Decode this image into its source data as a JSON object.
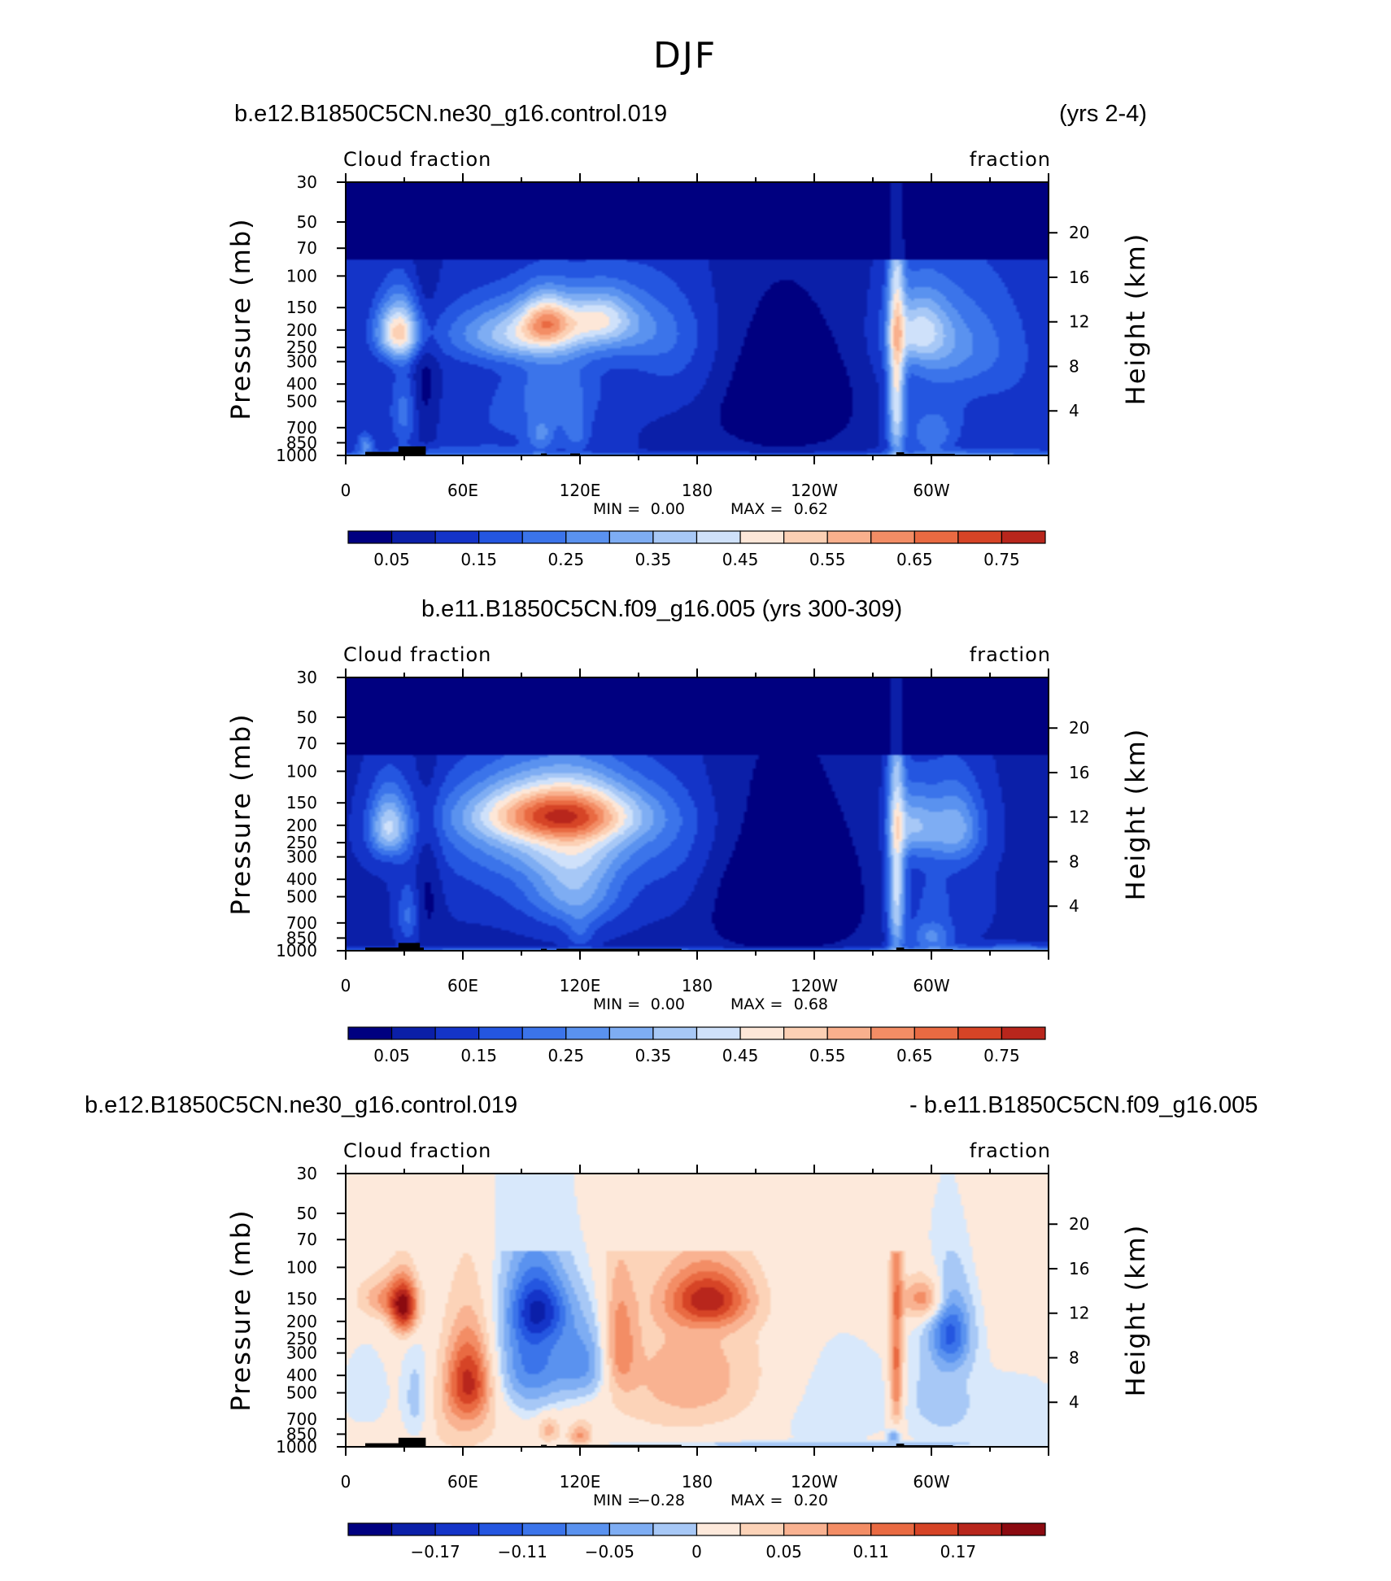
{
  "figure": {
    "season": "DJF"
  },
  "palettes": {
    "sequential": [
      "#000080",
      "#0b1fa8",
      "#1434c8",
      "#2456e0",
      "#3b74ea",
      "#5a92ef",
      "#7eadf3",
      "#a7c8f6",
      "#cfe1fa",
      "#fde7d8",
      "#fcd0b4",
      "#f9b08d",
      "#f38d65",
      "#e96a42",
      "#d64426",
      "#b8261c",
      "#8b0a10"
    ],
    "diverging": [
      "#000080",
      "#0b1fa8",
      "#1434c8",
      "#2456e0",
      "#3b74ea",
      "#5a92ef",
      "#7eadf3",
      "#a7c8f6",
      "#d8e8fb",
      "#fde9db",
      "#fcd3b8",
      "#f9b291",
      "#f38d65",
      "#e96a42",
      "#d64426",
      "#b8261c",
      "#8b0a10"
    ]
  },
  "chart_data": [
    {
      "type": "heatmap",
      "title_left": "b.e12.B1850C5CN.ne30_g16.control.019",
      "title_right": "(yrs 2-4)",
      "label_left": "Cloud fraction",
      "label_right": "fraction",
      "ylabel": "Pressure (mb)",
      "ylabel_right": "Height (km)",
      "x_ticks": [
        "0",
        "60E",
        "120E",
        "180",
        "120W",
        "60W"
      ],
      "x_tick_lons": [
        0,
        60,
        120,
        180,
        240,
        300
      ],
      "xlim": [
        0,
        360
      ],
      "y_ticks": [
        "30",
        "50",
        "70",
        "100",
        "150",
        "200",
        "250",
        "300",
        "400",
        "500",
        "700",
        "850",
        "1000"
      ],
      "y_tick_vals": [
        30,
        50,
        70,
        100,
        150,
        200,
        250,
        300,
        400,
        500,
        700,
        850,
        1000
      ],
      "ylim": [
        30,
        1000
      ],
      "y_scale": "log",
      "height_ticks": [
        "20",
        "16",
        "12",
        "8",
        "4"
      ],
      "height_tick_km": [
        20,
        16,
        12,
        8,
        4
      ],
      "min_label": "MIN =",
      "min_value": "0.00",
      "max_label": "MAX =",
      "max_value": "0.62",
      "colorbar_labels": [
        "0.05",
        "0.15",
        "0.25",
        "0.35",
        "0.45",
        "0.55",
        "0.65",
        "0.75"
      ],
      "palette": "sequential",
      "field": [
        {
          "lon": 27,
          "p": 205,
          "sx": 8,
          "sy": 55,
          "a": 0.4
        },
        {
          "lon": 30,
          "p": 570,
          "sx": 5,
          "sy": 200,
          "a": 0.12
        },
        {
          "lon": 10,
          "p": 870,
          "sx": 3,
          "sy": 90,
          "a": 0.16
        },
        {
          "lon": 40,
          "p": 400,
          "sx": 5,
          "sy": 300,
          "a": -0.08
        },
        {
          "lon": 90,
          "p": 210,
          "sx": 25,
          "sy": 55,
          "a": 0.28
        },
        {
          "lon": 103,
          "p": 175,
          "sx": 9,
          "sy": 40,
          "a": 0.28
        },
        {
          "lon": 130,
          "p": 170,
          "sx": 12,
          "sy": 40,
          "a": 0.22
        },
        {
          "lon": 148,
          "p": 195,
          "sx": 20,
          "sy": 70,
          "a": 0.12
        },
        {
          "lon": 108,
          "p": 430,
          "sx": 15,
          "sy": 160,
          "a": 0.12
        },
        {
          "lon": 118,
          "p": 760,
          "sx": 5,
          "sy": 130,
          "a": 0.1
        },
        {
          "lon": 100,
          "p": 780,
          "sx": 5,
          "sy": 120,
          "a": 0.12
        },
        {
          "lon": 84,
          "p": 640,
          "sx": 26,
          "sy": 260,
          "a": 0.05
        },
        {
          "lon": 170,
          "p": 320,
          "sx": 18,
          "sy": 150,
          "a": 0.06
        },
        {
          "lon": 282,
          "p": 400,
          "sx": 3,
          "sy": 450,
          "a": 0.33
        },
        {
          "lon": 293,
          "p": 200,
          "sx": 10,
          "sy": 60,
          "a": 0.22
        },
        {
          "lon": 308,
          "p": 235,
          "sx": 20,
          "sy": 110,
          "a": 0.15
        },
        {
          "lon": 300,
          "p": 780,
          "sx": 8,
          "sy": 140,
          "a": 0.11
        },
        {
          "lon": 300,
          "p": 560,
          "sx": 18,
          "sy": 230,
          "a": 0.06
        },
        {
          "lon": 340,
          "p": 330,
          "sx": 15,
          "sy": 200,
          "a": 0.04
        },
        {
          "lon": 180,
          "p": 985,
          "sx": 400,
          "sy": 18,
          "a": 0.1
        },
        {
          "lon": 340,
          "p": 960,
          "sx": 40,
          "sy": 40,
          "a": 0.07
        },
        {
          "lon": 50,
          "p": 940,
          "sx": 30,
          "sy": 50,
          "a": 0.06
        },
        {
          "lon": 225,
          "p": 500,
          "sx": 28,
          "sy": 300,
          "a": -0.12
        }
      ],
      "base": 0.1,
      "topo": [
        {
          "lon0": 10,
          "lon1": 40,
          "p": 955
        },
        {
          "lon0": 27,
          "lon1": 41,
          "p": 890
        },
        {
          "lon0": 100,
          "lon1": 103,
          "p": 975
        },
        {
          "lon0": 115,
          "lon1": 120,
          "p": 975
        },
        {
          "lon0": 282,
          "lon1": 286,
          "p": 960
        },
        {
          "lon0": 283,
          "lon1": 312,
          "p": 980
        }
      ]
    },
    {
      "type": "heatmap",
      "title_center": "b.e11.B1850C5CN.f09_g16.005 (yrs 300-309)",
      "label_left": "Cloud fraction",
      "label_right": "fraction",
      "ylabel": "Pressure (mb)",
      "ylabel_right": "Height (km)",
      "x_ticks": [
        "0",
        "60E",
        "120E",
        "180",
        "120W",
        "60W"
      ],
      "x_tick_lons": [
        0,
        60,
        120,
        180,
        240,
        300
      ],
      "xlim": [
        0,
        360
      ],
      "y_ticks": [
        "30",
        "50",
        "70",
        "100",
        "150",
        "200",
        "250",
        "300",
        "400",
        "500",
        "700",
        "850",
        "1000"
      ],
      "y_tick_vals": [
        30,
        50,
        70,
        100,
        150,
        200,
        250,
        300,
        400,
        500,
        700,
        850,
        1000
      ],
      "ylim": [
        30,
        1000
      ],
      "y_scale": "log",
      "height_ticks": [
        "20",
        "16",
        "12",
        "8",
        "4"
      ],
      "height_tick_km": [
        20,
        16,
        12,
        8,
        4
      ],
      "min_label": "MIN =",
      "min_value": "0.00",
      "max_label": "MAX =",
      "max_value": "0.68",
      "colorbar_labels": [
        "0.05",
        "0.15",
        "0.25",
        "0.35",
        "0.45",
        "0.55",
        "0.65",
        "0.75"
      ],
      "palette": "sequential",
      "field": [
        {
          "lon": 22,
          "p": 205,
          "sx": 7,
          "sy": 60,
          "a": 0.3
        },
        {
          "lon": 32,
          "p": 640,
          "sx": 4,
          "sy": 170,
          "a": 0.12
        },
        {
          "lon": 108,
          "p": 170,
          "sx": 30,
          "sy": 45,
          "a": 0.42
        },
        {
          "lon": 110,
          "p": 230,
          "sx": 38,
          "sy": 85,
          "a": 0.18
        },
        {
          "lon": 118,
          "p": 440,
          "sx": 16,
          "sy": 190,
          "a": 0.2
        },
        {
          "lon": 95,
          "p": 330,
          "sx": 35,
          "sy": 200,
          "a": 0.08
        },
        {
          "lon": 120,
          "p": 800,
          "sx": 5,
          "sy": 130,
          "a": 0.08
        },
        {
          "lon": 282,
          "p": 420,
          "sx": 3,
          "sy": 450,
          "a": 0.31
        },
        {
          "lon": 290,
          "p": 200,
          "sx": 8,
          "sy": 60,
          "a": 0.22
        },
        {
          "lon": 312,
          "p": 205,
          "sx": 10,
          "sy": 70,
          "a": 0.22
        },
        {
          "lon": 300,
          "p": 840,
          "sx": 7,
          "sy": 110,
          "a": 0.15
        },
        {
          "lon": 300,
          "p": 500,
          "sx": 17,
          "sy": 260,
          "a": 0.07
        },
        {
          "lon": 170,
          "p": 360,
          "sx": 16,
          "sy": 220,
          "a": 0.05
        },
        {
          "lon": 180,
          "p": 985,
          "sx": 400,
          "sy": 18,
          "a": 0.12
        },
        {
          "lon": 345,
          "p": 960,
          "sx": 35,
          "sy": 40,
          "a": 0.08
        },
        {
          "lon": 225,
          "p": 520,
          "sx": 30,
          "sy": 320,
          "a": -0.12
        },
        {
          "lon": 42,
          "p": 420,
          "sx": 5,
          "sy": 300,
          "a": -0.07
        }
      ],
      "base": 0.09,
      "topo": [
        {
          "lon0": 10,
          "lon1": 40,
          "p": 960
        },
        {
          "lon0": 27,
          "lon1": 38,
          "p": 905
        },
        {
          "lon0": 100,
          "lon1": 103,
          "p": 975
        },
        {
          "lon0": 108,
          "lon1": 172,
          "p": 975
        },
        {
          "lon0": 282,
          "lon1": 286,
          "p": 960
        },
        {
          "lon0": 283,
          "lon1": 311,
          "p": 980
        }
      ]
    },
    {
      "type": "heatmap",
      "title_left": "b.e12.B1850C5CN.ne30_g16.control.019",
      "title_right": "- b.e11.B1850C5CN.f09_g16.005",
      "label_left": "Cloud fraction",
      "label_right": "fraction",
      "ylabel": "Pressure (mb)",
      "ylabel_right": "Height (km)",
      "x_ticks": [
        "0",
        "60E",
        "120E",
        "180",
        "120W",
        "60W"
      ],
      "x_tick_lons": [
        0,
        60,
        120,
        180,
        240,
        300
      ],
      "xlim": [
        0,
        360
      ],
      "y_ticks": [
        "30",
        "50",
        "70",
        "100",
        "150",
        "200",
        "250",
        "300",
        "400",
        "500",
        "700",
        "850",
        "1000"
      ],
      "y_tick_vals": [
        30,
        50,
        70,
        100,
        150,
        200,
        250,
        300,
        400,
        500,
        700,
        850,
        1000
      ],
      "ylim": [
        30,
        1000
      ],
      "y_scale": "log",
      "height_ticks": [
        "20",
        "16",
        "12",
        "8",
        "4"
      ],
      "height_tick_km": [
        20,
        16,
        12,
        8,
        4
      ],
      "min_label": "MIN =",
      "min_value": "−0.28",
      "max_label": "MAX =",
      "max_value": "0.20",
      "colorbar_labels": [
        "−0.17",
        "−0.11",
        "−0.05",
        "0",
        "0.05",
        "0.11",
        "0.17"
      ],
      "palette": "diverging",
      "field": [
        {
          "lon": 30,
          "p": 170,
          "sx": 5,
          "sy": 45,
          "a": 0.19
        },
        {
          "lon": 20,
          "p": 150,
          "sx": 10,
          "sy": 30,
          "a": 0.09
        },
        {
          "lon": 63,
          "p": 420,
          "sx": 8,
          "sy": 170,
          "a": 0.16
        },
        {
          "lon": 60,
          "p": 700,
          "sx": 13,
          "sy": 280,
          "a": 0.05
        },
        {
          "lon": 95,
          "p": 300,
          "sx": 12,
          "sy": 200,
          "a": -0.14
        },
        {
          "lon": 100,
          "p": 170,
          "sx": 10,
          "sy": 50,
          "a": -0.12
        },
        {
          "lon": 122,
          "p": 340,
          "sx": 10,
          "sy": 130,
          "a": -0.11
        },
        {
          "lon": 140,
          "p": 270,
          "sx": 6,
          "sy": 140,
          "a": 0.1
        },
        {
          "lon": 186,
          "p": 150,
          "sx": 15,
          "sy": 40,
          "a": 0.16
        },
        {
          "lon": 180,
          "p": 420,
          "sx": 30,
          "sy": 250,
          "a": 0.08
        },
        {
          "lon": 120,
          "p": 870,
          "sx": 4,
          "sy": 100,
          "a": 0.09
        },
        {
          "lon": 104,
          "p": 800,
          "sx": 4,
          "sy": 100,
          "a": 0.07
        },
        {
          "lon": 36,
          "p": 550,
          "sx": 5,
          "sy": 250,
          "a": -0.05
        },
        {
          "lon": 282,
          "p": 350,
          "sx": 2.5,
          "sy": 300,
          "a": 0.14
        },
        {
          "lon": 281,
          "p": 870,
          "sx": 2,
          "sy": 60,
          "a": -0.1
        },
        {
          "lon": 296,
          "p": 150,
          "sx": 8,
          "sy": 30,
          "a": 0.12
        },
        {
          "lon": 310,
          "p": 230,
          "sx": 7,
          "sy": 80,
          "a": -0.14
        },
        {
          "lon": 305,
          "p": 500,
          "sx": 12,
          "sy": 260,
          "a": -0.04
        },
        {
          "lon": 240,
          "p": 560,
          "sx": 35,
          "sy": 350,
          "a": -0.03
        },
        {
          "lon": 230,
          "p": 970,
          "sx": 70,
          "sy": 25,
          "a": -0.05
        },
        {
          "lon": 345,
          "p": 700,
          "sx": 25,
          "sy": 300,
          "a": -0.025
        },
        {
          "lon": 10,
          "p": 500,
          "sx": 10,
          "sy": 200,
          "a": -0.03
        }
      ],
      "base": 0.015,
      "topo": [
        {
          "lon0": 10,
          "lon1": 40,
          "p": 955
        },
        {
          "lon0": 27,
          "lon1": 41,
          "p": 890
        },
        {
          "lon0": 100,
          "lon1": 103,
          "p": 975
        },
        {
          "lon0": 108,
          "lon1": 172,
          "p": 975
        },
        {
          "lon0": 282,
          "lon1": 286,
          "p": 960
        },
        {
          "lon0": 283,
          "lon1": 311,
          "p": 980
        }
      ]
    }
  ]
}
